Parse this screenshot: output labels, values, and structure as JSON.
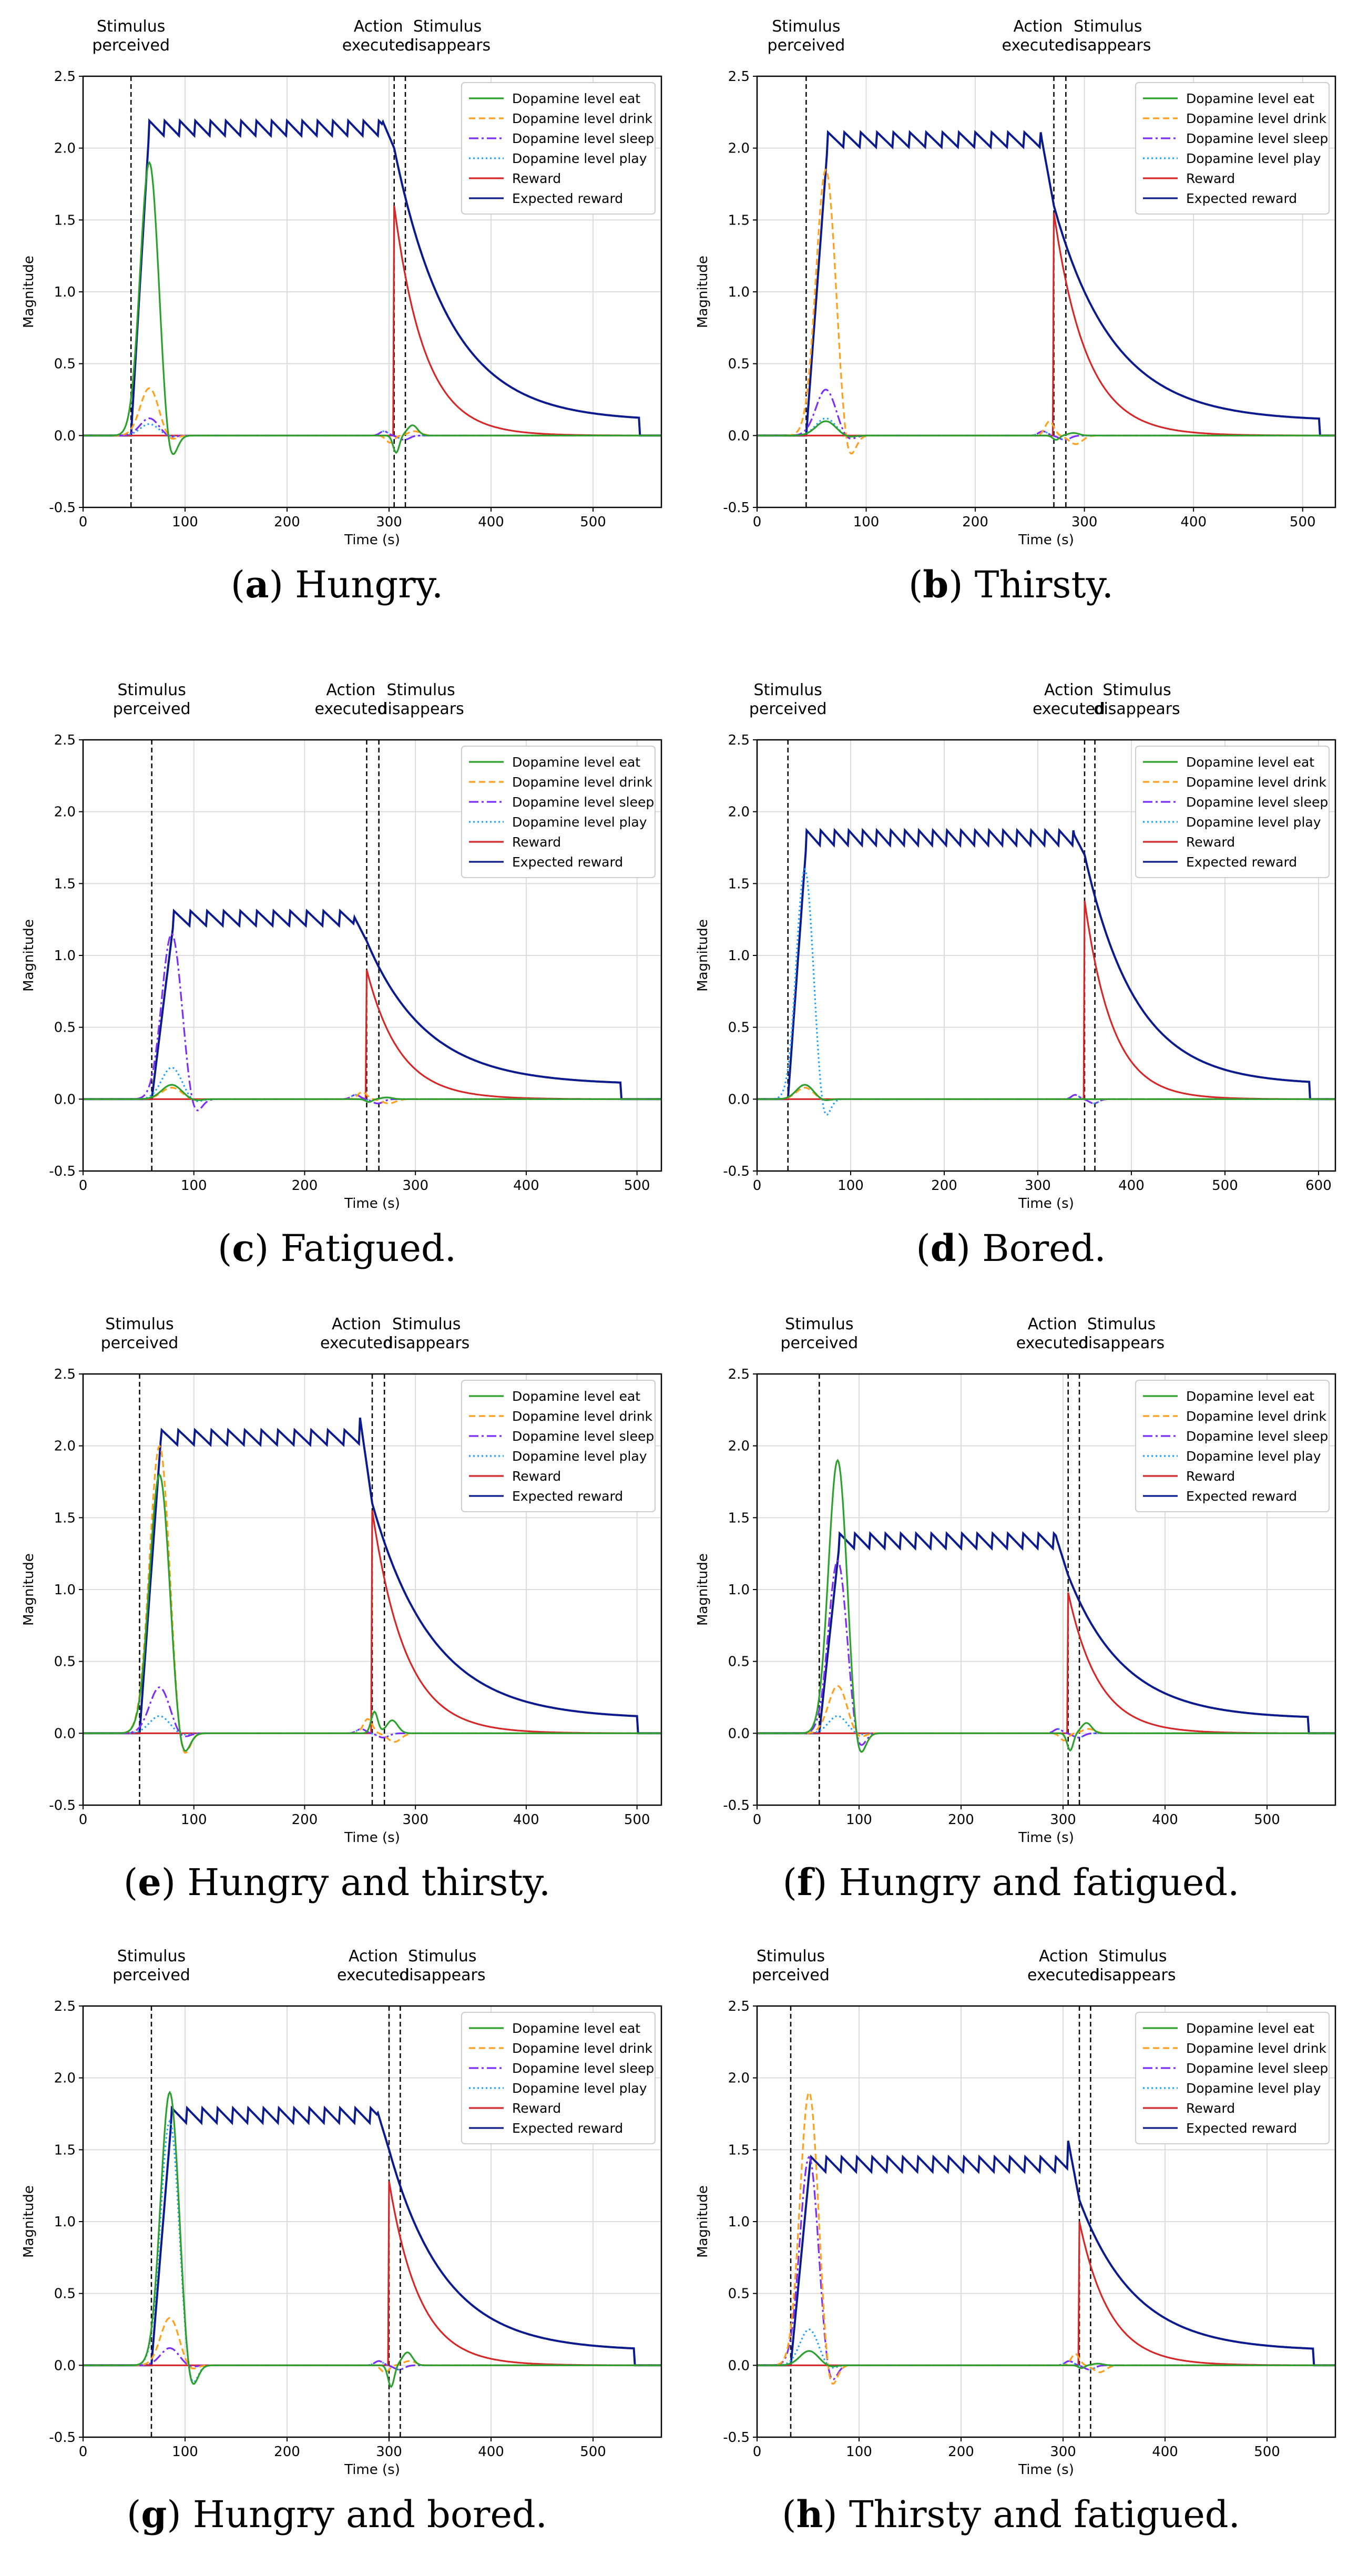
{
  "legend_labels": [
    "Dopamine level eat",
    "Dopamine level drink",
    "Dopamine level sleep",
    "Dopamine level play",
    "Reward",
    "Expected reward"
  ],
  "series_colors": {
    "eat": "#2ca02c",
    "drink": "#ff9f1c",
    "sleep": "#7b2ff7",
    "play": "#1f9fff",
    "reward": "#d62728",
    "expected": "#0b1a8c"
  },
  "event_labels": {
    "perceived": [
      "Stimulus",
      "perceived"
    ],
    "executed": [
      "Action",
      "executed"
    ],
    "disappears": [
      "Stimulus",
      "disappears"
    ]
  },
  "xlabel": "Time (s)",
  "ylabel": "Magnitude",
  "y_ticks": [
    -0.5,
    0.0,
    0.5,
    1.0,
    1.5,
    2.0,
    2.5
  ],
  "chart_data": [
    {
      "type": "line",
      "panel": "a",
      "caption_letter": "a",
      "caption_text": "Hungry.",
      "xlim": [
        0,
        567
      ],
      "ylim": [
        -0.5,
        2.5
      ],
      "x_ticks": [
        0,
        100,
        200,
        300,
        400,
        500
      ],
      "events": {
        "perceived": 47,
        "executed": 305,
        "disappears": 316
      },
      "expected": {
        "rise_end": 65,
        "plateau": 2.1,
        "peak": 2.2,
        "end": 545,
        "after_drop": 2.0,
        "tail": 0.1
      },
      "reward": {
        "peak": 1.6
      },
      "peaks": {
        "eat": 1.9,
        "drink": 0.33,
        "sleep": 0.12,
        "play": 0.08
      },
      "end_eat": -0.12,
      "end_drink": -0.05
    },
    {
      "type": "line",
      "panel": "b",
      "caption_letter": "b",
      "caption_text": "Thirsty.",
      "xlim": [
        0,
        530
      ],
      "ylim": [
        -0.5,
        2.5
      ],
      "x_ticks": [
        0,
        100,
        200,
        300,
        400,
        500
      ],
      "events": {
        "perceived": 45,
        "executed": 272,
        "disappears": 283
      },
      "expected": {
        "rise_end": 65,
        "plateau": 2.02,
        "peak": 2.1,
        "end": 515,
        "after_drop": 1.6,
        "tail": 0.1
      },
      "reward": {
        "peak": 1.55
      },
      "peaks": {
        "eat": 0.1,
        "drink": 1.85,
        "sleep": 0.32,
        "play": 0.12
      },
      "end_eat": -0.03,
      "end_drink": 0.1
    },
    {
      "type": "line",
      "panel": "c",
      "caption_letter": "c",
      "caption_text": "Fatigued.",
      "xlim": [
        0,
        522
      ],
      "ylim": [
        -0.5,
        2.5
      ],
      "x_ticks": [
        0,
        100,
        200,
        300,
        400,
        500
      ],
      "events": {
        "perceived": 62,
        "executed": 256,
        "disappears": 267
      },
      "expected": {
        "rise_end": 82,
        "plateau": 1.22,
        "peak": 1.28,
        "end": 485,
        "after_drop": 1.1,
        "tail": 0.1
      },
      "reward": {
        "peak": 0.9
      },
      "peaks": {
        "eat": 0.1,
        "drink": 0.08,
        "sleep": 1.15,
        "play": 0.22
      },
      "end_eat": -0.02,
      "end_drink": 0.05
    },
    {
      "type": "line",
      "panel": "d",
      "caption_letter": "d",
      "caption_text": "Bored.",
      "xlim": [
        0,
        618
      ],
      "ylim": [
        -0.5,
        2.5
      ],
      "x_ticks": [
        0,
        100,
        200,
        300,
        400,
        500,
        600
      ],
      "events": {
        "perceived": 33,
        "executed": 350,
        "disappears": 361
      },
      "expected": {
        "rise_end": 53,
        "plateau": 1.78,
        "peak": 1.85,
        "end": 590,
        "after_drop": 1.7,
        "tail": 0.1
      },
      "reward": {
        "peak": 1.38
      },
      "peaks": {
        "eat": 0.1,
        "drink": 0.08,
        "sleep": 0.1,
        "play": 1.6
      },
      "end_eat": 0.0,
      "end_drink": 0.0
    },
    {
      "type": "line",
      "panel": "e",
      "caption_letter": "e",
      "caption_text": "Hungry and thirsty.",
      "xlim": [
        0,
        522
      ],
      "ylim": [
        -0.5,
        2.5
      ],
      "x_ticks": [
        0,
        100,
        200,
        300,
        400,
        500
      ],
      "events": {
        "perceived": 51,
        "executed": 261,
        "disappears": 272
      },
      "expected": {
        "rise_end": 71,
        "plateau": 2.02,
        "peak": 2.25,
        "end": 500,
        "after_drop": 1.6,
        "tail": 0.1
      },
      "reward": {
        "peak": 1.55
      },
      "peaks": {
        "eat": 1.8,
        "drink": 2.0,
        "sleep": 0.32,
        "play": 0.12
      },
      "end_eat": 0.15,
      "end_drink": 0.1
    },
    {
      "type": "line",
      "panel": "f",
      "caption_letter": "f",
      "caption_text": "Hungry and fatigued.",
      "xlim": [
        0,
        567
      ],
      "ylim": [
        -0.5,
        2.5
      ],
      "x_ticks": [
        0,
        100,
        200,
        300,
        400,
        500
      ],
      "events": {
        "perceived": 61,
        "executed": 305,
        "disappears": 316
      },
      "expected": {
        "rise_end": 81,
        "plateau": 1.3,
        "peak": 1.37,
        "end": 540,
        "after_drop": 1.1,
        "tail": 0.1
      },
      "reward": {
        "peak": 0.98
      },
      "peaks": {
        "eat": 1.9,
        "drink": 0.33,
        "sleep": 1.2,
        "play": 0.12
      },
      "end_eat": -0.12,
      "end_drink": -0.05
    },
    {
      "type": "line",
      "panel": "g",
      "caption_letter": "g",
      "caption_text": "Hungry and bored.",
      "xlim": [
        0,
        567
      ],
      "ylim": [
        -0.5,
        2.5
      ],
      "x_ticks": [
        0,
        100,
        200,
        300,
        400,
        500
      ],
      "events": {
        "perceived": 67,
        "executed": 300,
        "disappears": 311
      },
      "expected": {
        "rise_end": 87,
        "plateau": 1.7,
        "peak": 1.78,
        "end": 540,
        "after_drop": 1.5,
        "tail": 0.1
      },
      "reward": {
        "peak": 1.28
      },
      "peaks": {
        "eat": 1.9,
        "drink": 0.33,
        "sleep": 0.12,
        "play": 1.7
      },
      "end_eat": -0.15,
      "end_drink": -0.05
    },
    {
      "type": "line",
      "panel": "h",
      "caption_letter": "h",
      "caption_text": "Thirsty and fatigued.",
      "xlim": [
        0,
        567
      ],
      "ylim": [
        -0.5,
        2.5
      ],
      "x_ticks": [
        0,
        100,
        200,
        300,
        400,
        500
      ],
      "events": {
        "perceived": 33,
        "executed": 316,
        "disappears": 327
      },
      "expected": {
        "rise_end": 53,
        "plateau": 1.36,
        "peak": 1.6,
        "end": 545,
        "after_drop": 1.15,
        "tail": 0.1
      },
      "reward": {
        "peak": 1.0
      },
      "peaks": {
        "eat": 0.1,
        "drink": 1.9,
        "sleep": 1.45,
        "play": 0.25
      },
      "end_eat": -0.02,
      "end_drink": 0.08
    }
  ]
}
